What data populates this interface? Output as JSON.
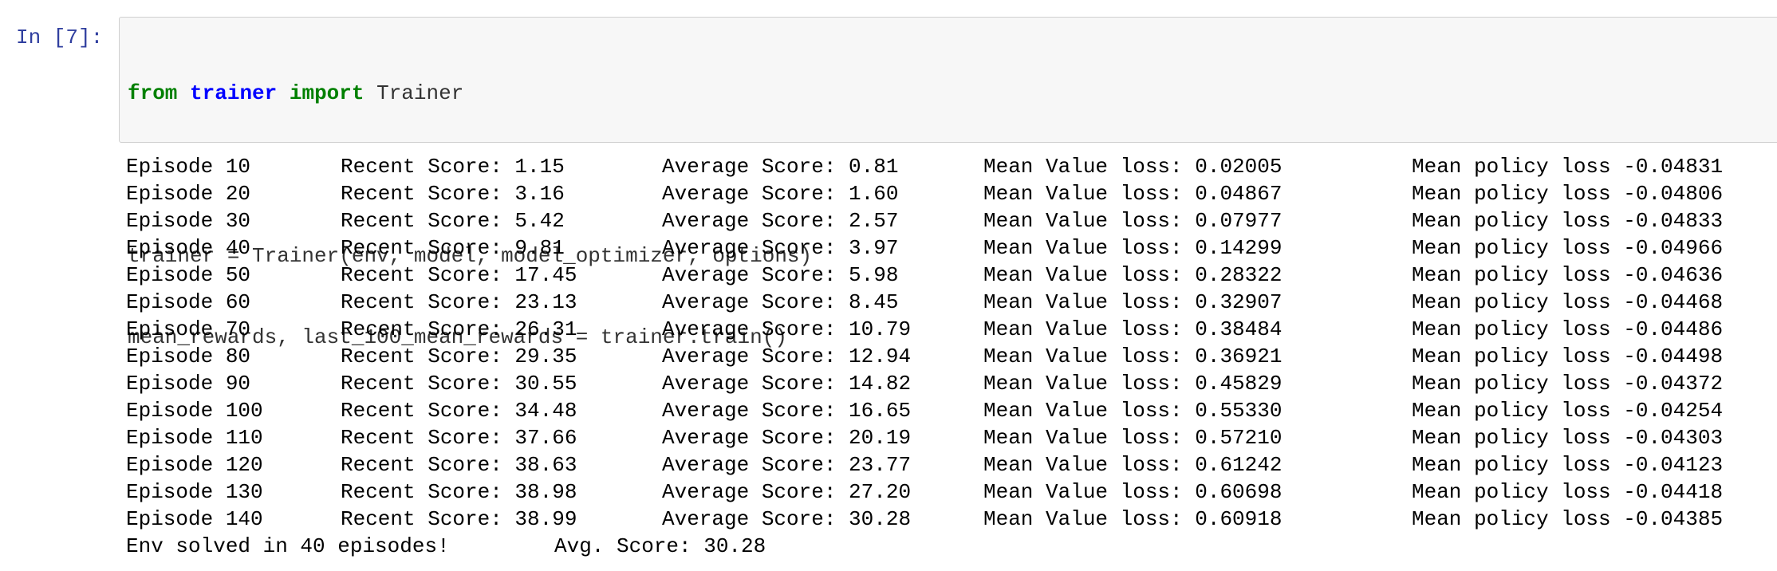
{
  "cell": {
    "prompt": "In [7]:",
    "code": {
      "line1": {
        "kw_from": "from",
        "module": "trainer",
        "kw_import": "import",
        "name": " Trainer"
      },
      "line2": "",
      "line3": "trainer = Trainer(env, model, model_optimizer, options)",
      "line4": "mean_rewards, last_100_mean_rewards = trainer.train()"
    }
  },
  "output": {
    "rows": [
      {
        "episode": "Episode 10",
        "recent": "Recent Score: 1.15",
        "average": "Average Score: 0.81",
        "value_loss": "Mean Value loss: 0.02005",
        "policy_loss": "Mean policy loss -0.04831"
      },
      {
        "episode": "Episode 20",
        "recent": "Recent Score: 3.16",
        "average": "Average Score: 1.60",
        "value_loss": "Mean Value loss: 0.04867",
        "policy_loss": "Mean policy loss -0.04806"
      },
      {
        "episode": "Episode 30",
        "recent": "Recent Score: 5.42",
        "average": "Average Score: 2.57",
        "value_loss": "Mean Value loss: 0.07977",
        "policy_loss": "Mean policy loss -0.04833"
      },
      {
        "episode": "Episode 40",
        "recent": "Recent Score: 9.81",
        "average": "Average Score: 3.97",
        "value_loss": "Mean Value loss: 0.14299",
        "policy_loss": "Mean policy loss -0.04966"
      },
      {
        "episode": "Episode 50",
        "recent": "Recent Score: 17.45",
        "average": "Average Score: 5.98",
        "value_loss": "Mean Value loss: 0.28322",
        "policy_loss": "Mean policy loss -0.04636"
      },
      {
        "episode": "Episode 60",
        "recent": "Recent Score: 23.13",
        "average": "Average Score: 8.45",
        "value_loss": "Mean Value loss: 0.32907",
        "policy_loss": "Mean policy loss -0.04468"
      },
      {
        "episode": "Episode 70",
        "recent": "Recent Score: 26.31",
        "average": "Average Score: 10.79",
        "value_loss": "Mean Value loss: 0.38484",
        "policy_loss": "Mean policy loss -0.04486"
      },
      {
        "episode": "Episode 80",
        "recent": "Recent Score: 29.35",
        "average": "Average Score: 12.94",
        "value_loss": "Mean Value loss: 0.36921",
        "policy_loss": "Mean policy loss -0.04498"
      },
      {
        "episode": "Episode 90",
        "recent": "Recent Score: 30.55",
        "average": "Average Score: 14.82",
        "value_loss": "Mean Value loss: 0.45829",
        "policy_loss": "Mean policy loss -0.04372"
      },
      {
        "episode": "Episode 100",
        "recent": "Recent Score: 34.48",
        "average": "Average Score: 16.65",
        "value_loss": "Mean Value loss: 0.55330",
        "policy_loss": "Mean policy loss -0.04254"
      },
      {
        "episode": "Episode 110",
        "recent": "Recent Score: 37.66",
        "average": "Average Score: 20.19",
        "value_loss": "Mean Value loss: 0.57210",
        "policy_loss": "Mean policy loss -0.04303"
      },
      {
        "episode": "Episode 120",
        "recent": "Recent Score: 38.63",
        "average": "Average Score: 23.77",
        "value_loss": "Mean Value loss: 0.61242",
        "policy_loss": "Mean policy loss -0.04123"
      },
      {
        "episode": "Episode 130",
        "recent": "Recent Score: 38.98",
        "average": "Average Score: 27.20",
        "value_loss": "Mean Value loss: 0.60698",
        "policy_loss": "Mean policy loss -0.04418"
      },
      {
        "episode": "Episode 140",
        "recent": "Recent Score: 38.99",
        "average": "Average Score: 30.28",
        "value_loss": "Mean Value loss: 0.60918",
        "policy_loss": "Mean policy loss -0.04385"
      }
    ],
    "final": {
      "solved": "Env solved in 40 episodes!",
      "avg": "Avg. Score: 30.28"
    }
  },
  "colors": {
    "prompt": "#303F9F",
    "keyword": "#008000",
    "module": "#0000ff",
    "input_background": "#f7f7f7",
    "input_border": "#cfcfcf"
  }
}
